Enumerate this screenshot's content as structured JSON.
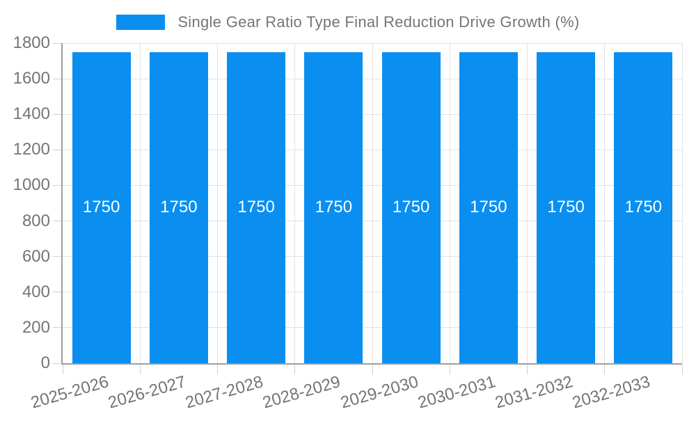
{
  "chart_data": {
    "type": "bar",
    "title": "Single Gear Ratio Type Final Reduction Drive Growth (%)",
    "categories": [
      "2025-2026",
      "2026-2027",
      "2027-2028",
      "2028-2029",
      "2029-2030",
      "2030-2031",
      "2031-2032",
      "2032-2033"
    ],
    "values": [
      1750,
      1750,
      1750,
      1750,
      1750,
      1750,
      1750,
      1750
    ],
    "xlabel": "",
    "ylabel": "",
    "ylim": [
      0,
      1800
    ],
    "ytick_step": 200,
    "yticks": [
      0,
      200,
      400,
      600,
      800,
      1000,
      1200,
      1400,
      1600,
      1800
    ],
    "grid": true,
    "legend_position": "top-center",
    "value_label_position": "inside-center",
    "x_label_rotation_deg": -16,
    "colors": {
      "bar": "#0a8ff0",
      "grid": "#e2e2e2",
      "tick": "#cfcfcf",
      "axis": "#9e9e9e",
      "text": "#757575",
      "value_label": "#ffffff",
      "background": "#ffffff"
    }
  }
}
